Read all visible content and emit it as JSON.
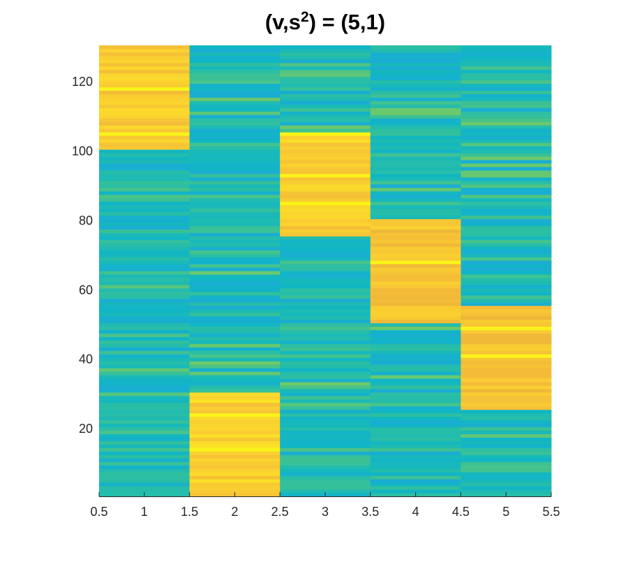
{
  "chart_data": {
    "type": "heatmap",
    "title": {
      "prefix": "(v,s",
      "sup": "2",
      "suffix": ") = (5,1)"
    },
    "xlabel": "",
    "ylabel": "",
    "xlim": [
      0.5,
      5.5
    ],
    "ylim": [
      0.5,
      130.5
    ],
    "x_ticks": [
      0.5,
      1,
      1.5,
      2,
      2.5,
      3,
      3.5,
      4,
      4.5,
      5,
      5.5
    ],
    "x_tick_labels": [
      "0.5",
      "1",
      "1.5",
      "2",
      "2.5",
      "3",
      "3.5",
      "4",
      "4.5",
      "5",
      "5.5"
    ],
    "y_ticks": [
      20,
      40,
      60,
      80,
      100,
      120
    ],
    "y_tick_labels": [
      "20",
      "40",
      "60",
      "80",
      "100",
      "120"
    ],
    "columns": [
      1,
      2,
      3,
      4,
      5
    ],
    "rows": 130,
    "colormap": "parula",
    "colormap_stops": [
      "#0d7be0",
      "#21a7dc",
      "#10b6c4",
      "#2ebfa0",
      "#6ec96a",
      "#c5b92e",
      "#f2b83a",
      "#fbd230",
      "#f9fa14"
    ],
    "value_range": [
      0,
      1
    ],
    "high_blocks": [
      {
        "column": 1,
        "rows": [
          101,
          130
        ],
        "level": 0.83
      },
      {
        "column": 2,
        "rows": [
          1,
          30
        ],
        "level": 0.86
      },
      {
        "column": 3,
        "rows": [
          76,
          105
        ],
        "level": 0.85
      },
      {
        "column": 4,
        "rows": [
          51,
          80
        ],
        "level": 0.8
      },
      {
        "column": 5,
        "rows": [
          26,
          55
        ],
        "level": 0.8
      }
    ],
    "background_level": 0.3,
    "grid": false,
    "colorbar": false
  }
}
